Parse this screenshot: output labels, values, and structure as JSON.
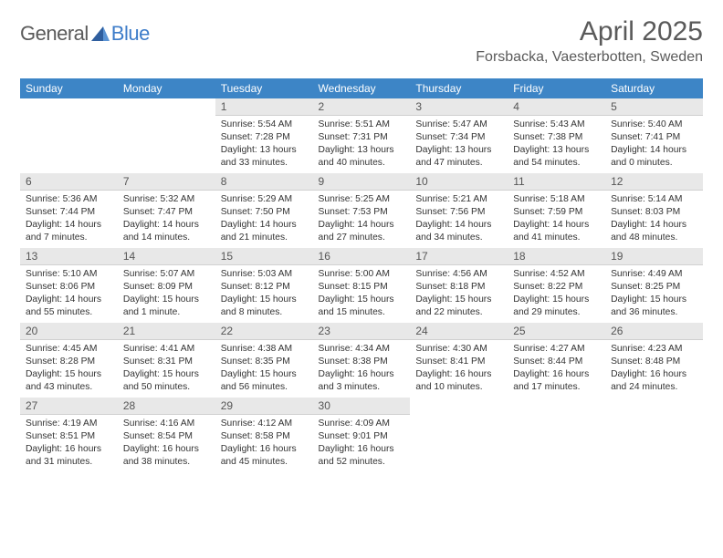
{
  "logo": {
    "general": "General",
    "blue": "Blue"
  },
  "title": "April 2025",
  "location": "Forsbacka, Vaesterbotten, Sweden",
  "colors": {
    "header_bg": "#3d85c6",
    "header_text": "#ffffff",
    "daynum_bg": "#e8e8e8",
    "daynum_text": "#555555",
    "body_text": "#333333",
    "title_text": "#5a5a5a",
    "logo_blue": "#3d7cc9",
    "page_bg": "#ffffff",
    "border": "#d0d0d0"
  },
  "weekdays": [
    "Sunday",
    "Monday",
    "Tuesday",
    "Wednesday",
    "Thursday",
    "Friday",
    "Saturday"
  ],
  "labels": {
    "sunrise": "Sunrise:",
    "sunset": "Sunset:",
    "daylight": "Daylight:"
  },
  "grid": [
    [
      null,
      null,
      {
        "n": "1",
        "sr": "5:54 AM",
        "ss": "7:28 PM",
        "dl": "13 hours and 33 minutes."
      },
      {
        "n": "2",
        "sr": "5:51 AM",
        "ss": "7:31 PM",
        "dl": "13 hours and 40 minutes."
      },
      {
        "n": "3",
        "sr": "5:47 AM",
        "ss": "7:34 PM",
        "dl": "13 hours and 47 minutes."
      },
      {
        "n": "4",
        "sr": "5:43 AM",
        "ss": "7:38 PM",
        "dl": "13 hours and 54 minutes."
      },
      {
        "n": "5",
        "sr": "5:40 AM",
        "ss": "7:41 PM",
        "dl": "14 hours and 0 minutes."
      }
    ],
    [
      {
        "n": "6",
        "sr": "5:36 AM",
        "ss": "7:44 PM",
        "dl": "14 hours and 7 minutes."
      },
      {
        "n": "7",
        "sr": "5:32 AM",
        "ss": "7:47 PM",
        "dl": "14 hours and 14 minutes."
      },
      {
        "n": "8",
        "sr": "5:29 AM",
        "ss": "7:50 PM",
        "dl": "14 hours and 21 minutes."
      },
      {
        "n": "9",
        "sr": "5:25 AM",
        "ss": "7:53 PM",
        "dl": "14 hours and 27 minutes."
      },
      {
        "n": "10",
        "sr": "5:21 AM",
        "ss": "7:56 PM",
        "dl": "14 hours and 34 minutes."
      },
      {
        "n": "11",
        "sr": "5:18 AM",
        "ss": "7:59 PM",
        "dl": "14 hours and 41 minutes."
      },
      {
        "n": "12",
        "sr": "5:14 AM",
        "ss": "8:03 PM",
        "dl": "14 hours and 48 minutes."
      }
    ],
    [
      {
        "n": "13",
        "sr": "5:10 AM",
        "ss": "8:06 PM",
        "dl": "14 hours and 55 minutes."
      },
      {
        "n": "14",
        "sr": "5:07 AM",
        "ss": "8:09 PM",
        "dl": "15 hours and 1 minute."
      },
      {
        "n": "15",
        "sr": "5:03 AM",
        "ss": "8:12 PM",
        "dl": "15 hours and 8 minutes."
      },
      {
        "n": "16",
        "sr": "5:00 AM",
        "ss": "8:15 PM",
        "dl": "15 hours and 15 minutes."
      },
      {
        "n": "17",
        "sr": "4:56 AM",
        "ss": "8:18 PM",
        "dl": "15 hours and 22 minutes."
      },
      {
        "n": "18",
        "sr": "4:52 AM",
        "ss": "8:22 PM",
        "dl": "15 hours and 29 minutes."
      },
      {
        "n": "19",
        "sr": "4:49 AM",
        "ss": "8:25 PM",
        "dl": "15 hours and 36 minutes."
      }
    ],
    [
      {
        "n": "20",
        "sr": "4:45 AM",
        "ss": "8:28 PM",
        "dl": "15 hours and 43 minutes."
      },
      {
        "n": "21",
        "sr": "4:41 AM",
        "ss": "8:31 PM",
        "dl": "15 hours and 50 minutes."
      },
      {
        "n": "22",
        "sr": "4:38 AM",
        "ss": "8:35 PM",
        "dl": "15 hours and 56 minutes."
      },
      {
        "n": "23",
        "sr": "4:34 AM",
        "ss": "8:38 PM",
        "dl": "16 hours and 3 minutes."
      },
      {
        "n": "24",
        "sr": "4:30 AM",
        "ss": "8:41 PM",
        "dl": "16 hours and 10 minutes."
      },
      {
        "n": "25",
        "sr": "4:27 AM",
        "ss": "8:44 PM",
        "dl": "16 hours and 17 minutes."
      },
      {
        "n": "26",
        "sr": "4:23 AM",
        "ss": "8:48 PM",
        "dl": "16 hours and 24 minutes."
      }
    ],
    [
      {
        "n": "27",
        "sr": "4:19 AM",
        "ss": "8:51 PM",
        "dl": "16 hours and 31 minutes."
      },
      {
        "n": "28",
        "sr": "4:16 AM",
        "ss": "8:54 PM",
        "dl": "16 hours and 38 minutes."
      },
      {
        "n": "29",
        "sr": "4:12 AM",
        "ss": "8:58 PM",
        "dl": "16 hours and 45 minutes."
      },
      {
        "n": "30",
        "sr": "4:09 AM",
        "ss": "9:01 PM",
        "dl": "16 hours and 52 minutes."
      },
      null,
      null,
      null
    ]
  ]
}
